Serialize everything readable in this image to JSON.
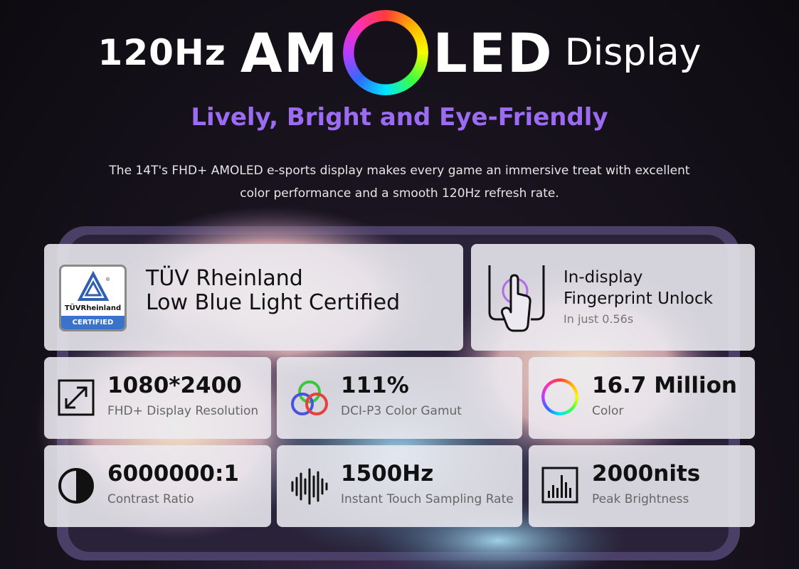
{
  "headline": {
    "prefix": "120Hz",
    "word_start": "AM",
    "word_end": "LED",
    "suffix": "Display"
  },
  "subtitle": "Lively, Bright and Eye-Friendly",
  "description": "The 14T's FHD+ AMOLED e-sports display makes every game an immersive treat with excellent color performance and a smooth 120Hz refresh rate.",
  "certification": {
    "logo_word": "TÜVRheinland",
    "logo_badge": "CERTIFIED",
    "title_line1": "TÜV Rheinland",
    "title_line2": "Low Blue Light Certified",
    "icon": "tuv-certified-logo"
  },
  "fingerprint": {
    "title_line1": "In-display",
    "title_line2": "Fingerprint Unlock",
    "subtitle": "In just 0.56s",
    "icon": "fingerprint-touch-icon"
  },
  "specs": [
    {
      "value": "1080*2400",
      "label": "FHD+ Display Resolution",
      "icon": "resize-diagonal-icon"
    },
    {
      "value": "111%",
      "label": "DCI-P3 Color Gamut",
      "icon": "rgb-circles-icon"
    },
    {
      "value": "16.7 Million",
      "label": "Color",
      "icon": "color-ring-icon"
    },
    {
      "value": "6000000:1",
      "label": "Contrast Ratio",
      "icon": "contrast-icon"
    },
    {
      "value": "1500Hz",
      "label": "Instant Touch Sampling Rate",
      "icon": "sound-wave-icon"
    },
    {
      "value": "2000nits",
      "label": "Peak Brightness",
      "icon": "bar-chart-icon"
    }
  ],
  "colors": {
    "subtitle": "#9b6cf2",
    "card_bg": "#eceaf0",
    "tuv_blue": "#3a73c9",
    "fingerprint_accent": "#b36ae8"
  }
}
